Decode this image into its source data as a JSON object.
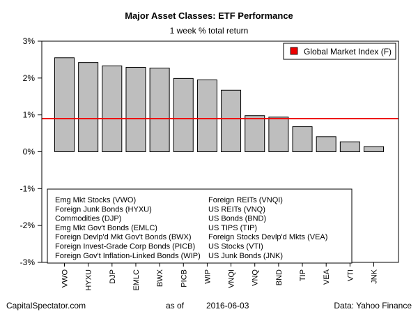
{
  "chart_data": {
    "type": "bar",
    "title": "Major Asset Classes: ETF Performance",
    "subtitle": "1 week % total return",
    "categories": [
      "VWO",
      "HYXU",
      "DJP",
      "EMLC",
      "BWX",
      "PICB",
      "WIP",
      "VNQI",
      "VNQ",
      "BND",
      "TIP",
      "VEA",
      "VTI",
      "JNK"
    ],
    "values": [
      2.55,
      2.42,
      2.33,
      2.29,
      2.27,
      1.99,
      1.95,
      1.67,
      0.98,
      0.94,
      0.68,
      0.41,
      0.27,
      0.14
    ],
    "ylim": [
      -3,
      3
    ],
    "yticks": [
      -3,
      -2,
      -1,
      0,
      1,
      2,
      3
    ],
    "ytick_labels": [
      "-3%",
      "-2%",
      "-1%",
      "0%",
      "1%",
      "2%",
      "3%"
    ],
    "reference_line": {
      "name": "Global Market Index (F)",
      "value": 0.9,
      "color": "#ee0000"
    },
    "bar_color": "#bebebe",
    "legend_position": "top-right",
    "lookup_left": [
      "Emg Mkt Stocks (VWO)",
      "Foreign Junk Bonds (HYXU)",
      "Commodities (DJP)",
      "Emg Mkt Gov't Bonds (EMLC)",
      "Foreign Devlp'd Mkt Gov't Bonds (BWX)",
      "Foreign Invest-Grade Corp Bonds (PICB)",
      "Foreign Gov't Inflation-Linked Bonds (WIP)"
    ],
    "lookup_right": [
      "Foreign REITs (VNQI)",
      "US REITs (VNQ)",
      "US Bonds (BND)",
      "US TIPS (TIP)",
      "Foreign Stocks Devlp'd Mkts (VEA)",
      "US Stocks (VTI)",
      "US Junk Bonds (JNK)"
    ]
  },
  "footer": {
    "source_site": "CapitalSpectator.com",
    "as_of_label": "as of",
    "date": "2016-06-03",
    "data_source": "Data: Yahoo Finance"
  }
}
